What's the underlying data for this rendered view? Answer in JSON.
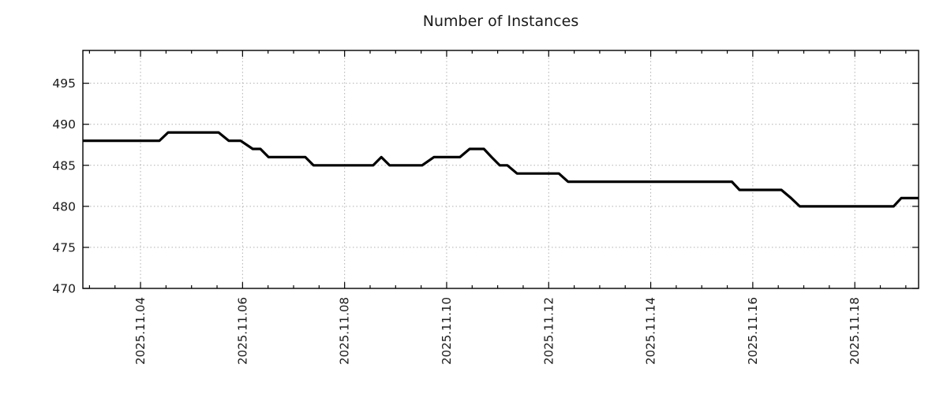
{
  "chart_data": {
    "type": "line",
    "title": "Number of Instances",
    "legend": "none",
    "grid": "dotted",
    "series": [
      {
        "name": "instances",
        "points": [
          [
            2.87,
            488
          ],
          [
            4.37,
            488
          ],
          [
            4.54,
            489
          ],
          [
            5.53,
            489
          ],
          [
            5.73,
            488
          ],
          [
            5.96,
            488
          ],
          [
            6.2,
            487
          ],
          [
            6.35,
            487
          ],
          [
            6.51,
            486
          ],
          [
            7.23,
            486
          ],
          [
            7.39,
            485
          ],
          [
            8.56,
            485
          ],
          [
            8.72,
            486
          ],
          [
            8.88,
            485
          ],
          [
            9.52,
            485
          ],
          [
            9.75,
            486
          ],
          [
            10.26,
            486
          ],
          [
            10.45,
            487
          ],
          [
            10.73,
            487
          ],
          [
            10.88,
            486
          ],
          [
            11.04,
            485
          ],
          [
            11.19,
            485
          ],
          [
            11.38,
            484
          ],
          [
            12.2,
            484
          ],
          [
            12.38,
            483
          ],
          [
            15.59,
            483
          ],
          [
            15.74,
            482
          ],
          [
            16.56,
            482
          ],
          [
            16.75,
            481
          ],
          [
            16.92,
            480
          ],
          [
            18.76,
            480
          ],
          [
            18.91,
            481
          ],
          [
            19.25,
            481
          ]
        ]
      }
    ],
    "x_axis": {
      "unit": "date (day of November 2025, decimal)",
      "tick_days": [
        4,
        6,
        8,
        10,
        12,
        14,
        16,
        18
      ],
      "tick_labels": [
        "2025.11.04",
        "2025.11.06",
        "2025.11.08",
        "2025.11.10",
        "2025.11.12",
        "2025.11.14",
        "2025.11.16",
        "2025.11.18"
      ],
      "minor_tick_step_days": 0.5,
      "xlim_days": [
        2.87,
        19.25
      ]
    },
    "y_axis": {
      "ticks": [
        470,
        475,
        480,
        485,
        490,
        495
      ],
      "ylim": [
        470,
        499
      ]
    },
    "colors": {
      "line": "#000000",
      "grid": "#b0b0b0",
      "axis": "#000000",
      "text": "#1a1a1a",
      "background": "#ffffff"
    }
  }
}
